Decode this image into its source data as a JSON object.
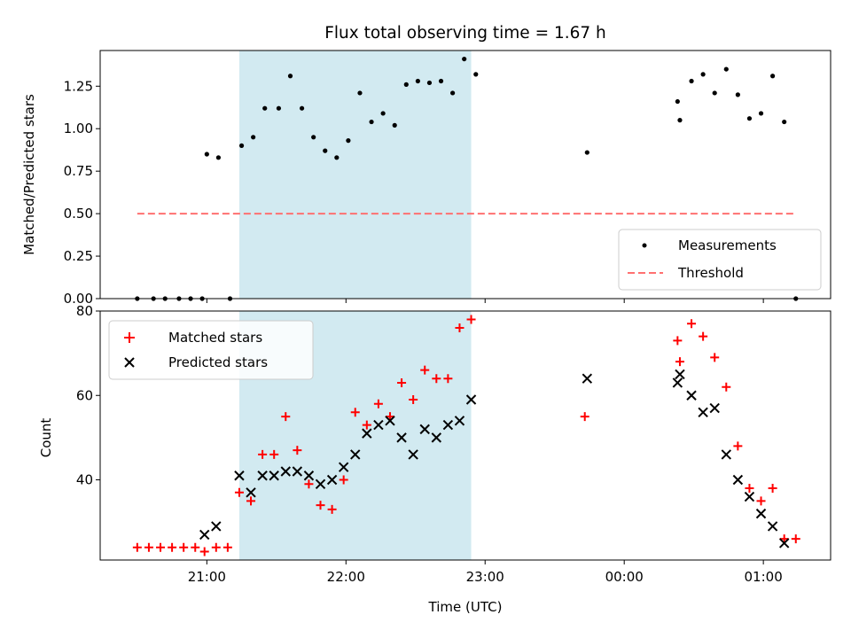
{
  "chart_data": [
    {
      "type": "scatter",
      "title": "Flux total observing time = 1.67 h",
      "xlabel": "",
      "ylabel": "Matched/Predicted stars",
      "ylim": [
        0,
        1.46
      ],
      "xlim": [
        "20:14",
        "01:29"
      ],
      "yticks": [
        "0.00",
        "0.25",
        "0.50",
        "0.75",
        "1.00",
        "1.25"
      ],
      "highlight_span": [
        "21:14",
        "22:54"
      ],
      "highlight_color": "#add8e6",
      "legend_position": "lower-right",
      "series": [
        {
          "name": "Measurements",
          "color": "#000000",
          "marker": "dot",
          "points": [
            [
              "20:30",
              0.0
            ],
            [
              "20:37",
              0.0
            ],
            [
              "20:42",
              0.0
            ],
            [
              "20:48",
              0.0
            ],
            [
              "20:53",
              0.0
            ],
            [
              "20:58",
              0.0
            ],
            [
              "21:00",
              0.85
            ],
            [
              "21:05",
              0.83
            ],
            [
              "21:10",
              0.0
            ],
            [
              "21:15",
              0.9
            ],
            [
              "21:20",
              0.95
            ],
            [
              "21:25",
              1.12
            ],
            [
              "21:31",
              1.12
            ],
            [
              "21:36",
              1.31
            ],
            [
              "21:41",
              1.12
            ],
            [
              "21:46",
              0.95
            ],
            [
              "21:51",
              0.87
            ],
            [
              "21:56",
              0.83
            ],
            [
              "22:01",
              0.93
            ],
            [
              "22:06",
              1.21
            ],
            [
              "22:11",
              1.04
            ],
            [
              "22:16",
              1.09
            ],
            [
              "22:21",
              1.02
            ],
            [
              "22:26",
              1.26
            ],
            [
              "22:31",
              1.28
            ],
            [
              "22:36",
              1.27
            ],
            [
              "22:41",
              1.28
            ],
            [
              "22:46",
              1.21
            ],
            [
              "22:51",
              1.41
            ],
            [
              "22:56",
              1.32
            ],
            [
              "23:44",
              0.86
            ],
            [
              "00:23",
              1.16
            ],
            [
              "00:24",
              1.05
            ],
            [
              "00:29",
              1.28
            ],
            [
              "00:34",
              1.32
            ],
            [
              "00:39",
              1.21
            ],
            [
              "00:44",
              1.35
            ],
            [
              "00:49",
              1.2
            ],
            [
              "00:54",
              1.06
            ],
            [
              "00:59",
              1.09
            ],
            [
              "01:04",
              1.31
            ],
            [
              "01:09",
              1.04
            ],
            [
              "01:14",
              0.0
            ]
          ]
        },
        {
          "name": "Threshold",
          "color": "#ff7070",
          "line": "dashed",
          "x": [
            "20:30",
            "01:14"
          ],
          "y": [
            0.5,
            0.5
          ]
        }
      ]
    },
    {
      "type": "scatter",
      "title": "",
      "xlabel": "Time (UTC)",
      "ylabel": "Count",
      "ylim": [
        21,
        80
      ],
      "xlim": [
        "20:14",
        "01:29"
      ],
      "xticks": [
        "21:00",
        "22:00",
        "23:00",
        "00:00",
        "01:00"
      ],
      "yticks": [
        "40",
        "60",
        "80"
      ],
      "highlight_span": [
        "21:14",
        "22:54"
      ],
      "highlight_color": "#add8e6",
      "legend_position": "upper-left",
      "series": [
        {
          "name": "Matched stars",
          "color": "#ff0000",
          "marker": "plus",
          "points": [
            [
              "20:30",
              24
            ],
            [
              "20:35",
              24
            ],
            [
              "20:40",
              24
            ],
            [
              "20:45",
              24
            ],
            [
              "20:50",
              24
            ],
            [
              "20:55",
              24
            ],
            [
              "20:59",
              23
            ],
            [
              "21:04",
              24
            ],
            [
              "21:09",
              24
            ],
            [
              "21:14",
              37
            ],
            [
              "21:19",
              35
            ],
            [
              "21:24",
              46
            ],
            [
              "21:29",
              46
            ],
            [
              "21:34",
              55
            ],
            [
              "21:39",
              47
            ],
            [
              "21:44",
              39
            ],
            [
              "21:49",
              34
            ],
            [
              "21:54",
              33
            ],
            [
              "21:59",
              40
            ],
            [
              "22:04",
              56
            ],
            [
              "22:09",
              53
            ],
            [
              "22:14",
              58
            ],
            [
              "22:19",
              55
            ],
            [
              "22:24",
              63
            ],
            [
              "22:29",
              59
            ],
            [
              "22:34",
              66
            ],
            [
              "22:39",
              64
            ],
            [
              "22:44",
              64
            ],
            [
              "22:49",
              76
            ],
            [
              "22:54",
              78
            ],
            [
              "23:43",
              55
            ],
            [
              "00:23",
              73
            ],
            [
              "00:24",
              68
            ],
            [
              "00:29",
              77
            ],
            [
              "00:34",
              74
            ],
            [
              "00:39",
              69
            ],
            [
              "00:44",
              62
            ],
            [
              "00:49",
              48
            ],
            [
              "00:54",
              38
            ],
            [
              "00:59",
              35
            ],
            [
              "01:04",
              38
            ],
            [
              "01:09",
              26
            ],
            [
              "01:14",
              26
            ]
          ]
        },
        {
          "name": "Predicted stars",
          "color": "#000000",
          "marker": "x",
          "points": [
            [
              "20:59",
              27
            ],
            [
              "21:04",
              29
            ],
            [
              "21:14",
              41
            ],
            [
              "21:19",
              37
            ],
            [
              "21:24",
              41
            ],
            [
              "21:29",
              41
            ],
            [
              "21:34",
              42
            ],
            [
              "21:39",
              42
            ],
            [
              "21:44",
              41
            ],
            [
              "21:49",
              39
            ],
            [
              "21:54",
              40
            ],
            [
              "21:59",
              43
            ],
            [
              "22:04",
              46
            ],
            [
              "22:09",
              51
            ],
            [
              "22:14",
              53
            ],
            [
              "22:19",
              54
            ],
            [
              "22:24",
              50
            ],
            [
              "22:29",
              46
            ],
            [
              "22:34",
              52
            ],
            [
              "22:39",
              50
            ],
            [
              "22:44",
              53
            ],
            [
              "22:49",
              54
            ],
            [
              "22:54",
              59
            ],
            [
              "23:44",
              64
            ],
            [
              "00:23",
              63
            ],
            [
              "00:24",
              65
            ],
            [
              "00:29",
              60
            ],
            [
              "00:34",
              56
            ],
            [
              "00:39",
              57
            ],
            [
              "00:44",
              46
            ],
            [
              "00:49",
              40
            ],
            [
              "00:54",
              36
            ],
            [
              "00:59",
              32
            ],
            [
              "01:04",
              29
            ],
            [
              "01:09",
              25
            ]
          ]
        }
      ]
    }
  ]
}
